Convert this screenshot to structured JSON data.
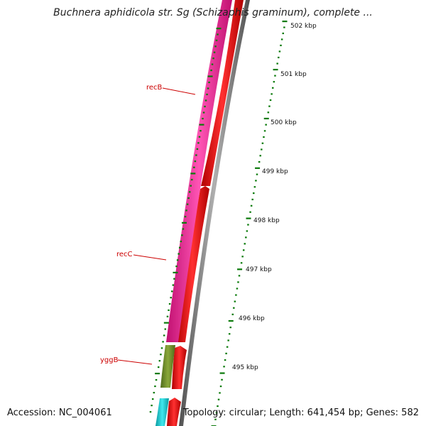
{
  "title": "Buchnera aphidicola str. Sg (Schizaphis graminum), complete ...",
  "footer": {
    "accession": "Accession: NC_004061",
    "summary": "Topology: circular; Length: 641,454 bp; Genes: 582"
  },
  "scale": {
    "unit": "kbp",
    "labels": [
      "502 kbp",
      "501 kbp",
      "500 kbp",
      "499 kbp",
      "498 kbp",
      "497 kbp",
      "496 kbp",
      "495 kbp"
    ]
  },
  "genes": [
    {
      "name": "recB",
      "color": "#ff1f9a"
    },
    {
      "name": "recC",
      "color": "#ff1f9a"
    },
    {
      "name": "yggB",
      "color": "#6b8e23"
    },
    {
      "name": "",
      "color": "#00c8d0"
    }
  ],
  "colors": {
    "feature_track_forward": "#ff1f9a",
    "cds_track": "#ff0000",
    "backbone": "#808080",
    "tick": "#0a7a0a",
    "label_line": "#cc0000"
  }
}
